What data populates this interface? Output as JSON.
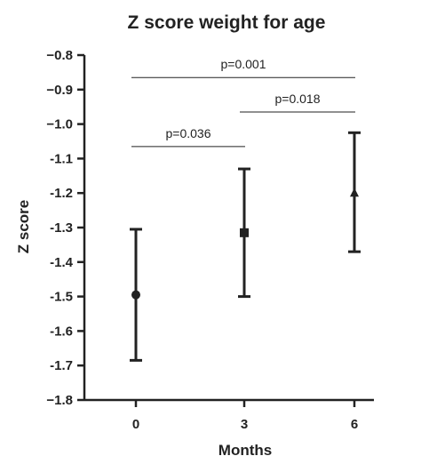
{
  "chart_data": {
    "type": "scatter",
    "title": "Z score weight for age",
    "xlabel": "Months",
    "ylabel": "Z score",
    "x_ticks": [
      "0",
      "3",
      "6"
    ],
    "y_ticks": [
      "−0.8",
      "−0.9",
      "−1.0",
      "-1.1",
      "-1.2",
      "-1.3",
      "-1.4",
      "-1.5",
      "-1.6",
      "-1.7",
      "−1.8"
    ],
    "ylim": [
      -1.8,
      -0.8
    ],
    "grid": false,
    "points": [
      {
        "x": 0,
        "y": -1.495,
        "upper": -1.305,
        "lower": -1.685,
        "marker": "circle"
      },
      {
        "x": 3,
        "y": -1.315,
        "upper": -1.13,
        "lower": -1.5,
        "marker": "square"
      },
      {
        "x": 6,
        "y": -1.2,
        "upper": -1.025,
        "lower": -1.37,
        "marker": "triangle"
      }
    ],
    "comparisons": [
      {
        "from": 0,
        "to": 6,
        "label": "p=0.001",
        "y": -0.865
      },
      {
        "from": 3,
        "to": 6,
        "label": "p=0.018",
        "y": -0.965
      },
      {
        "from": 0,
        "to": 3,
        "label": "p=0.036",
        "y": -1.065
      }
    ]
  }
}
